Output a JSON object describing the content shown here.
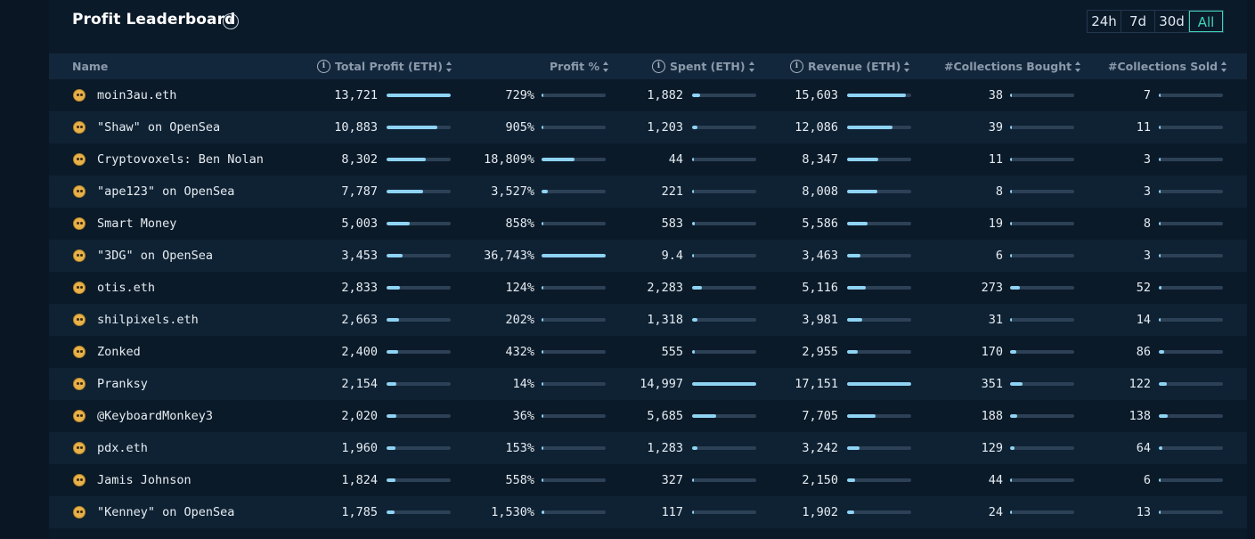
{
  "title": "Profit Leaderboard",
  "time_ranges": [
    {
      "label": "24h",
      "active": false
    },
    {
      "label": "7d",
      "active": false
    },
    {
      "label": "30d",
      "active": false
    },
    {
      "label": "All",
      "active": true
    }
  ],
  "columns": {
    "name": "Name",
    "total_profit": "Total Profit (ETH)",
    "profit_pct": "Profit %",
    "spent": "Spent (ETH)",
    "revenue": "Revenue (ETH)",
    "collections_bought": "#Collections Bought",
    "collections_sold": "#Collections Sold"
  },
  "rows": [
    {
      "name": "moin3au.eth",
      "profit": "13,721",
      "profit_pct": "729%",
      "spent": "1,882",
      "revenue": "15,603",
      "bought": "38",
      "sold": "7",
      "bars": {
        "profit": 1.0,
        "pct": 0.02,
        "spent": 0.126,
        "revenue": 0.91,
        "bought": 0.03,
        "sold": 0.02
      }
    },
    {
      "name": "\"Shaw\" on OpenSea",
      "profit": "10,883",
      "profit_pct": "905%",
      "spent": "1,203",
      "revenue": "12,086",
      "bought": "39",
      "sold": "11",
      "bars": {
        "profit": 0.793,
        "pct": 0.025,
        "spent": 0.08,
        "revenue": 0.705,
        "bought": 0.03,
        "sold": 0.03
      }
    },
    {
      "name": "Cryptovoxels: Ben Nolan",
      "profit": "8,302",
      "profit_pct": "18,809%",
      "spent": "44",
      "revenue": "8,347",
      "bought": "11",
      "sold": "3",
      "bars": {
        "profit": 0.605,
        "pct": 0.512,
        "spent": 0.01,
        "revenue": 0.487,
        "bought": 0.02,
        "sold": 0.02
      }
    },
    {
      "name": "\"ape123\" on OpenSea",
      "profit": "7,787",
      "profit_pct": "3,527%",
      "spent": "221",
      "revenue": "8,008",
      "bought": "8",
      "sold": "3",
      "bars": {
        "profit": 0.568,
        "pct": 0.096,
        "spent": 0.015,
        "revenue": 0.467,
        "bought": 0.02,
        "sold": 0.02
      }
    },
    {
      "name": "Smart Money",
      "profit": "5,003",
      "profit_pct": "858%",
      "spent": "583",
      "revenue": "5,586",
      "bought": "19",
      "sold": "8",
      "bars": {
        "profit": 0.365,
        "pct": 0.023,
        "spent": 0.039,
        "revenue": 0.326,
        "bought": 0.02,
        "sold": 0.02
      }
    },
    {
      "name": "\"3DG\" on OpenSea",
      "profit": "3,453",
      "profit_pct": "36,743%",
      "spent": "9.4",
      "revenue": "3,463",
      "bought": "6",
      "sold": "3",
      "bars": {
        "profit": 0.252,
        "pct": 1.0,
        "spent": 0.01,
        "revenue": 0.202,
        "bought": 0.02,
        "sold": 0.02
      }
    },
    {
      "name": "otis.eth",
      "profit": "2,833",
      "profit_pct": "124%",
      "spent": "2,283",
      "revenue": "5,116",
      "bought": "273",
      "sold": "52",
      "bars": {
        "profit": 0.206,
        "pct": 0.01,
        "spent": 0.152,
        "revenue": 0.298,
        "bought": 0.15,
        "sold": 0.04
      }
    },
    {
      "name": "shilpixels.eth",
      "profit": "2,663",
      "profit_pct": "202%",
      "spent": "1,318",
      "revenue": "3,981",
      "bought": "31",
      "sold": "14",
      "bars": {
        "profit": 0.194,
        "pct": 0.01,
        "spent": 0.088,
        "revenue": 0.232,
        "bought": 0.02,
        "sold": 0.02
      }
    },
    {
      "name": "Zonked",
      "profit": "2,400",
      "profit_pct": "432%",
      "spent": "555",
      "revenue": "2,955",
      "bought": "170",
      "sold": "86",
      "bars": {
        "profit": 0.175,
        "pct": 0.012,
        "spent": 0.037,
        "revenue": 0.172,
        "bought": 0.1,
        "sold": 0.08
      }
    },
    {
      "name": "Pranksy",
      "profit": "2,154",
      "profit_pct": "14%",
      "spent": "14,997",
      "revenue": "17,151",
      "bought": "351",
      "sold": "122",
      "bars": {
        "profit": 0.157,
        "pct": 0.0,
        "spent": 1.0,
        "revenue": 1.0,
        "bought": 0.2,
        "sold": 0.12
      }
    },
    {
      "name": "@KeyboardMonkey3",
      "profit": "2,020",
      "profit_pct": "36%",
      "spent": "5,685",
      "revenue": "7,705",
      "bought": "188",
      "sold": "138",
      "bars": {
        "profit": 0.147,
        "pct": 0.0,
        "spent": 0.379,
        "revenue": 0.449,
        "bought": 0.11,
        "sold": 0.14
      }
    },
    {
      "name": "pdx.eth",
      "profit": "1,960",
      "profit_pct": "153%",
      "spent": "1,283",
      "revenue": "3,242",
      "bought": "129",
      "sold": "64",
      "bars": {
        "profit": 0.143,
        "pct": 0.01,
        "spent": 0.086,
        "revenue": 0.189,
        "bought": 0.07,
        "sold": 0.06
      }
    },
    {
      "name": "Jamis Johnson",
      "profit": "1,824",
      "profit_pct": "558%",
      "spent": "327",
      "revenue": "2,150",
      "bought": "44",
      "sold": "6",
      "bars": {
        "profit": 0.133,
        "pct": 0.015,
        "spent": 0.022,
        "revenue": 0.125,
        "bought": 0.03,
        "sold": 0.02
      }
    },
    {
      "name": "\"Kenney\" on OpenSea",
      "profit": "1,785",
      "profit_pct": "1,530%",
      "spent": "117",
      "revenue": "1,902",
      "bought": "24",
      "sold": "13",
      "bars": {
        "profit": 0.13,
        "pct": 0.042,
        "spent": 0.01,
        "revenue": 0.111,
        "bought": 0.02,
        "sold": 0.02
      }
    }
  ]
}
